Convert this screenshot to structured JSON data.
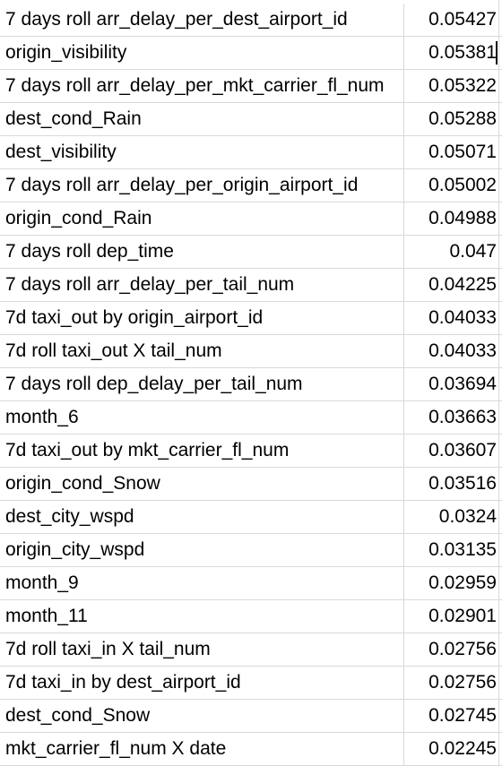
{
  "table": {
    "rows": [
      {
        "feature": "7 days roll arr_delay_per_dest_airport_id",
        "value": "0.05427"
      },
      {
        "feature": "origin_visibility",
        "value": "0.05381"
      },
      {
        "feature": "7 days roll arr_delay_per_mkt_carrier_fl_num",
        "value": "0.05322"
      },
      {
        "feature": "dest_cond_Rain",
        "value": "0.05288"
      },
      {
        "feature": "dest_visibility",
        "value": "0.05071"
      },
      {
        "feature": "7 days roll arr_delay_per_origin_airport_id",
        "value": "0.05002"
      },
      {
        "feature": "origin_cond_Rain",
        "value": "0.04988"
      },
      {
        "feature": "7 days roll dep_time",
        "value": "0.047"
      },
      {
        "feature": "7 days roll arr_delay_per_tail_num",
        "value": "0.04225"
      },
      {
        "feature": "7d taxi_out by origin_airport_id",
        "value": "0.04033"
      },
      {
        "feature": "7d roll taxi_out X tail_num",
        "value": "0.04033"
      },
      {
        "feature": "7 days roll dep_delay_per_tail_num",
        "value": "0.03694"
      },
      {
        "feature": "month_6",
        "value": "0.03663"
      },
      {
        "feature": "7d taxi_out by mkt_carrier_fl_num",
        "value": "0.03607"
      },
      {
        "feature": "origin_cond_Snow",
        "value": "0.03516"
      },
      {
        "feature": "dest_city_wspd",
        "value": "0.0324"
      },
      {
        "feature": "origin_city_wspd",
        "value": "0.03135"
      },
      {
        "feature": "month_9",
        "value": "0.02959"
      },
      {
        "feature": "month_11",
        "value": "0.02901"
      },
      {
        "feature": "7d roll taxi_in X tail_num",
        "value": "0.02756"
      },
      {
        "feature": "7d taxi_in by dest_airport_id",
        "value": "0.02756"
      },
      {
        "feature": "dest_cond_Snow",
        "value": "0.02745"
      },
      {
        "feature": "mkt_carrier_fl_num X date",
        "value": "0.02245"
      }
    ]
  }
}
